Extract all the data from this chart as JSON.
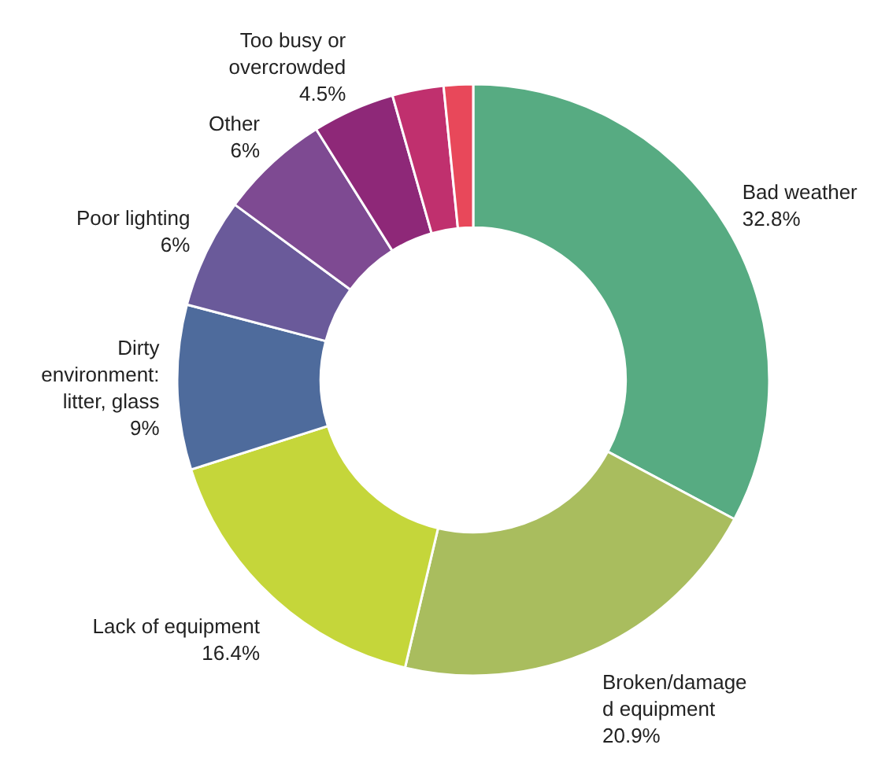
{
  "chart_data": {
    "type": "donut",
    "categories": [
      "Bad weather",
      "Broken/damage\nd equipment",
      "Lack of equipment",
      "Dirty\nenvironment:\nlitter, glass",
      "Poor lighting",
      "Other",
      "Too busy or\novercrowded",
      null,
      null
    ],
    "values": [
      32.8,
      20.9,
      16.4,
      9,
      6,
      6,
      4.5,
      2.8,
      1.6
    ],
    "value_labels": [
      "32.8%",
      "20.9%",
      "16.4%",
      "9%",
      "6%",
      "6%",
      "4.5%",
      null,
      null
    ],
    "colors": [
      "#57ab82",
      "#a9bd5e",
      "#c5d63a",
      "#4e6b9c",
      "#6a5a9a",
      "#7e4a92",
      "#8e2878",
      "#c0306e",
      "#e8485a"
    ]
  }
}
